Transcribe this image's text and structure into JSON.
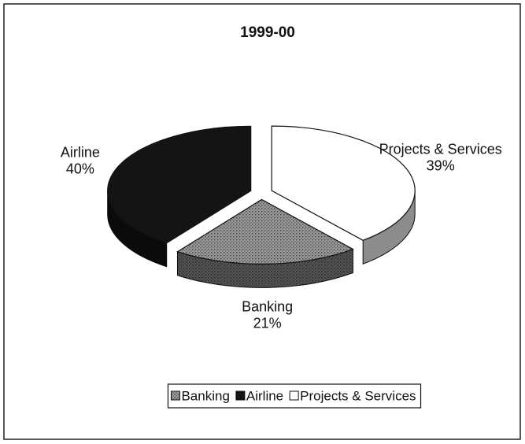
{
  "chart_data": {
    "type": "pie",
    "title": "1999-00",
    "categories": [
      "Banking",
      "Airline",
      "Projects & Services"
    ],
    "values": [
      21,
      40,
      39
    ],
    "value_labels": [
      "21%",
      "40%",
      "39%"
    ],
    "colors": [
      "#8c8c8c",
      "#141414",
      "#ffffff"
    ],
    "legend": "bottom"
  }
}
